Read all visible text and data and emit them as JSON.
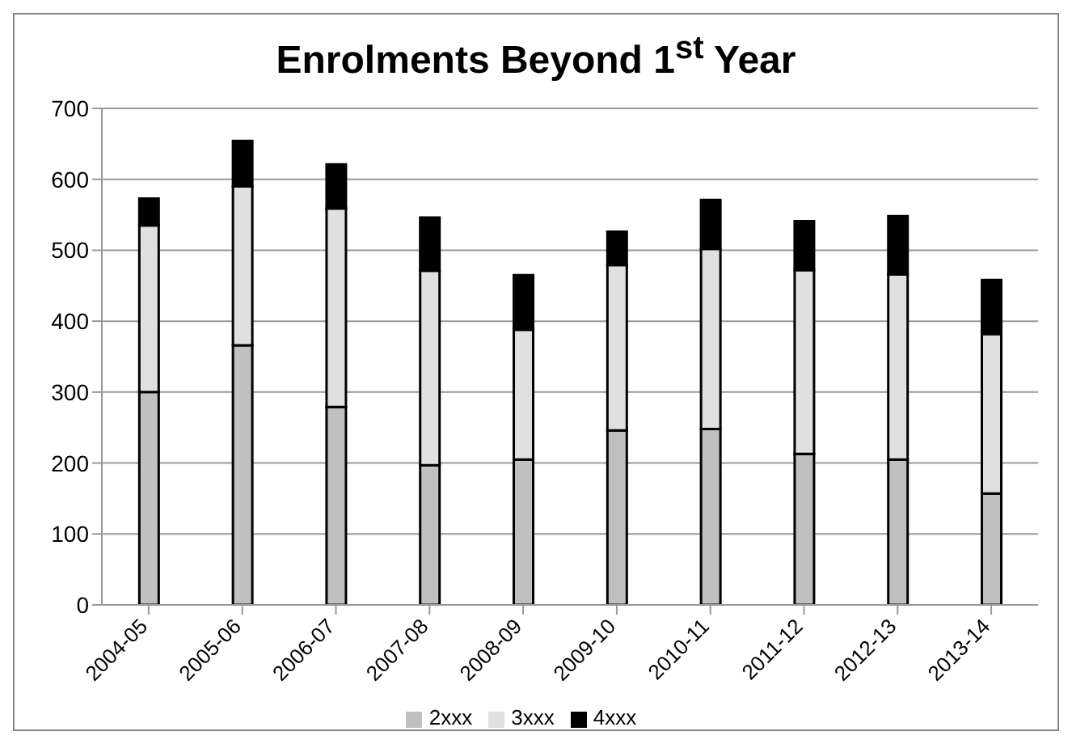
{
  "chart_data": {
    "type": "bar",
    "title": "Enrolments Beyond 1$^{st}$ Year",
    "stacked": true,
    "categories": [
      "2004-05",
      "2005-06",
      "2006-07",
      "2007-08",
      "2008-09",
      "2009-10",
      "2010-11",
      "2011-12",
      "2012-13",
      "2013-14"
    ],
    "series": [
      {
        "name": "2xxx",
        "color": "#c0c0c0",
        "values": [
          300,
          366,
          279,
          197,
          205,
          246,
          248,
          213,
          205,
          157
        ]
      },
      {
        "name": "3xxx",
        "color": "#e0e0e0",
        "values": [
          235,
          224,
          280,
          274,
          183,
          233,
          254,
          259,
          261,
          225
        ]
      },
      {
        "name": "4xxx",
        "color": "#000000",
        "values": [
          38,
          64,
          62,
          75,
          77,
          47,
          69,
          69,
          82,
          76
        ]
      }
    ],
    "ylim": [
      0,
      700
    ],
    "yticks": [
      0,
      100,
      200,
      300,
      400,
      500,
      600,
      700
    ],
    "grid": "y",
    "legend": "bottom"
  }
}
